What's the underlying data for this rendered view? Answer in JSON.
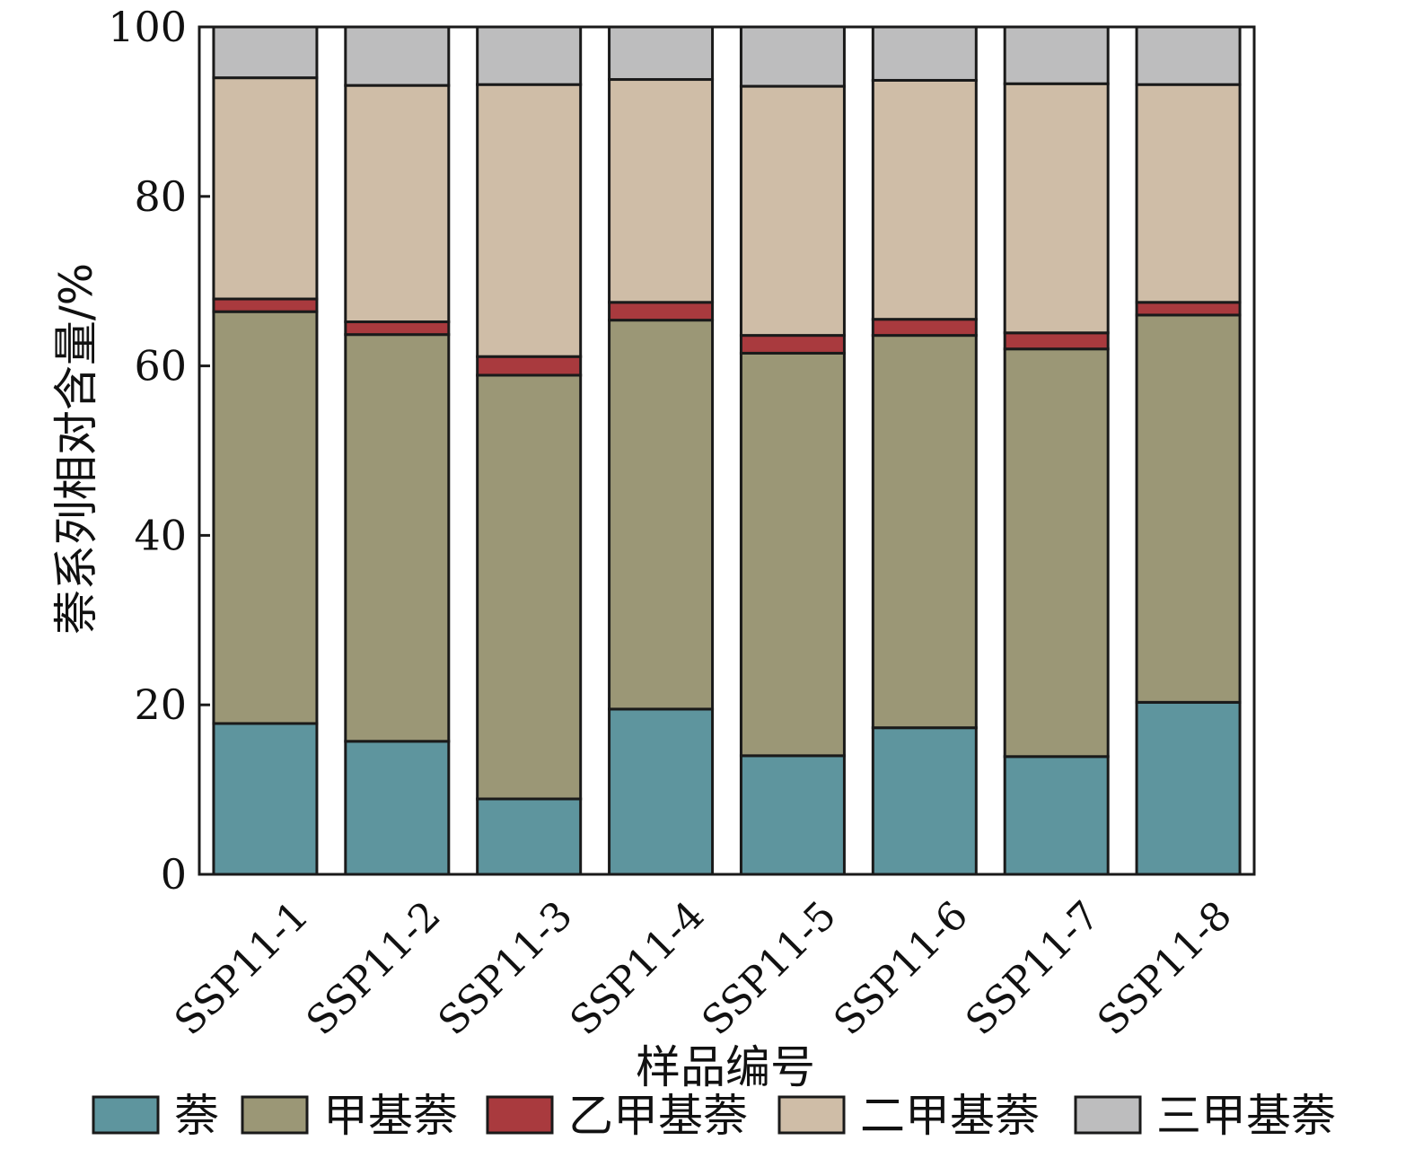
{
  "chart_data": {
    "type": "bar",
    "stacked": true,
    "categories": [
      "SSP11-1",
      "SSP11-2",
      "SSP11-3",
      "SSP11-4",
      "SSP11-5",
      "SSP11-6",
      "SSP11-7",
      "SSP11-8"
    ],
    "series": [
      {
        "name": "萘",
        "color": "#5e959e",
        "values": [
          17.8,
          15.7,
          8.9,
          19.5,
          14.0,
          17.3,
          13.9,
          20.3
        ]
      },
      {
        "name": "甲基萘",
        "color": "#9b9776",
        "values": [
          48.6,
          48.0,
          50.0,
          45.9,
          47.5,
          46.3,
          48.1,
          45.7
        ]
      },
      {
        "name": "乙甲基萘",
        "color": "#a93a3e",
        "values": [
          1.5,
          1.5,
          2.2,
          2.1,
          2.1,
          1.9,
          1.9,
          1.5
        ]
      },
      {
        "name": "二甲基萘",
        "color": "#cfbda7",
        "values": [
          26.1,
          27.9,
          32.1,
          26.3,
          29.4,
          28.2,
          29.4,
          25.7
        ]
      },
      {
        "name": "三甲基萘",
        "color": "#bdbdbe",
        "values": [
          6.0,
          6.9,
          6.8,
          6.2,
          7.0,
          6.3,
          6.7,
          6.8
        ]
      }
    ],
    "title": "",
    "xlabel": "样品编号",
    "ylabel": "萘系列相对含量/%",
    "ylim": [
      0,
      100
    ],
    "yticks": [
      "0",
      "20",
      "40",
      "60",
      "80",
      "100"
    ],
    "grid": false,
    "legend_position": "bottom"
  }
}
